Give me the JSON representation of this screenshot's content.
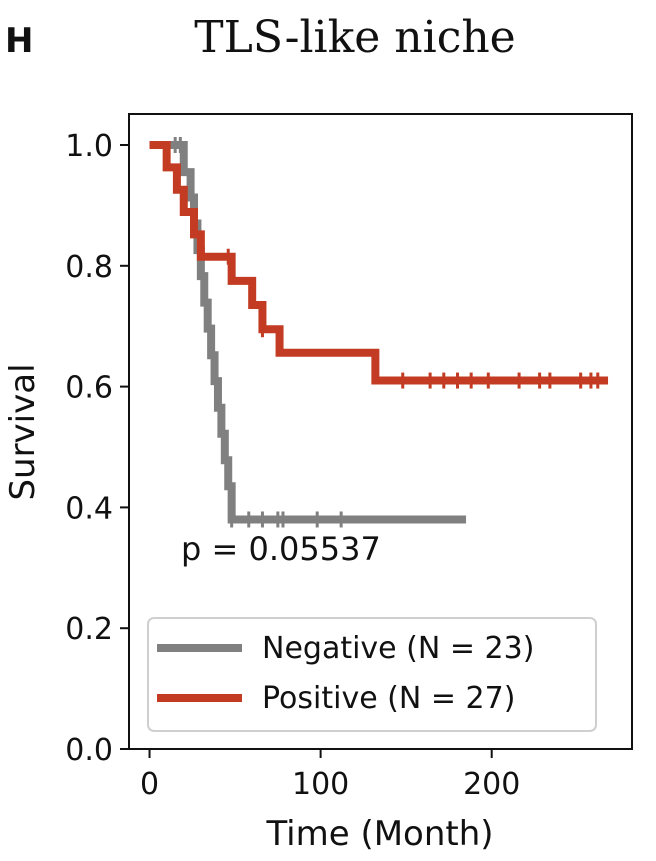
{
  "panel_label": "H",
  "chart_data": {
    "type": "line",
    "subtype": "kaplan-meier",
    "title": "TLS-like niche",
    "xlabel": "Time (Month)",
    "ylabel": "Survival",
    "xlim": [
      -12,
      282
    ],
    "ylim": [
      0,
      1.0
    ],
    "xticks": [
      0,
      100,
      200
    ],
    "yticks": [
      0.0,
      0.2,
      0.4,
      0.6,
      0.8,
      1.0
    ],
    "grid": false,
    "legend_position": "lower-left",
    "annotation": "p = 0.05537",
    "series": [
      {
        "name": "Negative",
        "label": "Negative (N = 23)",
        "color": "#808080",
        "steps": [
          [
            0,
            1.0
          ],
          [
            20,
            0.955
          ],
          [
            24,
            0.913
          ],
          [
            26,
            0.87
          ],
          [
            28,
            0.826
          ],
          [
            30,
            0.783
          ],
          [
            32,
            0.739
          ],
          [
            34,
            0.696
          ],
          [
            36,
            0.652
          ],
          [
            38,
            0.609
          ],
          [
            40,
            0.565
          ],
          [
            42,
            0.522
          ],
          [
            44,
            0.478
          ],
          [
            46,
            0.435
          ],
          [
            48,
            0.38
          ],
          [
            185,
            0.38
          ]
        ],
        "censors": [
          [
            15,
            1.0
          ],
          [
            18,
            1.0
          ],
          [
            48,
            0.38
          ],
          [
            58,
            0.38
          ],
          [
            66,
            0.38
          ],
          [
            75,
            0.38
          ],
          [
            78,
            0.38
          ],
          [
            98,
            0.38
          ],
          [
            112,
            0.38
          ]
        ]
      },
      {
        "name": "Positive",
        "label": "Positive (N = 27)",
        "color": "#c23b22",
        "steps": [
          [
            0,
            1.0
          ],
          [
            10,
            0.963
          ],
          [
            16,
            0.926
          ],
          [
            20,
            0.889
          ],
          [
            26,
            0.852
          ],
          [
            30,
            0.815
          ],
          [
            48,
            0.775
          ],
          [
            60,
            0.735
          ],
          [
            66,
            0.695
          ],
          [
            76,
            0.656
          ],
          [
            132,
            0.61
          ],
          [
            268,
            0.61
          ]
        ],
        "censors": [
          [
            46,
            0.815
          ],
          [
            66,
            0.695
          ],
          [
            148,
            0.61
          ],
          [
            164,
            0.61
          ],
          [
            172,
            0.61
          ],
          [
            180,
            0.61
          ],
          [
            188,
            0.61
          ],
          [
            198,
            0.61
          ],
          [
            216,
            0.61
          ],
          [
            228,
            0.61
          ],
          [
            234,
            0.61
          ],
          [
            252,
            0.61
          ],
          [
            258,
            0.61
          ],
          [
            262,
            0.61
          ]
        ]
      }
    ]
  }
}
